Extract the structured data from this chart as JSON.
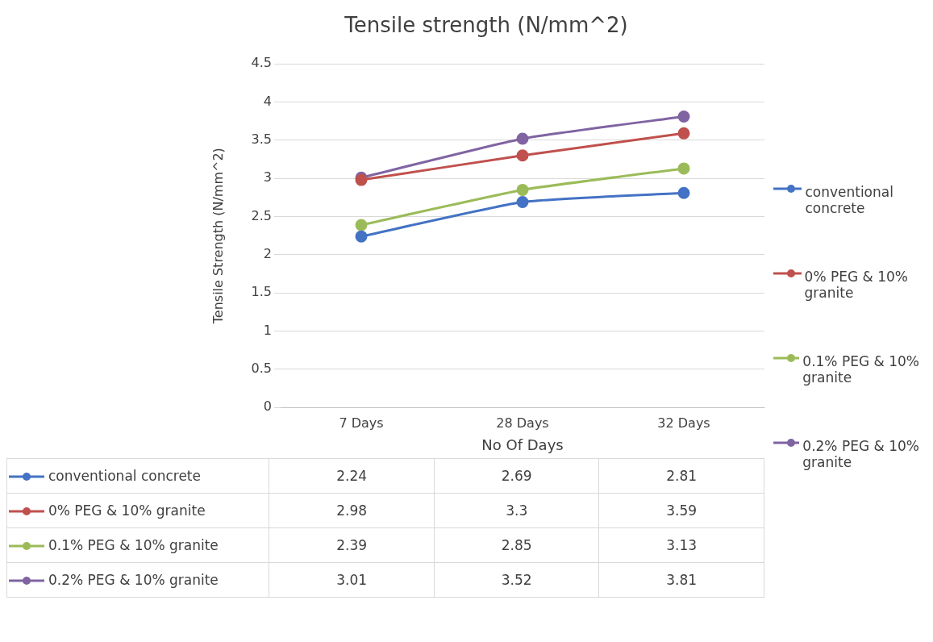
{
  "chart_data": {
    "type": "line",
    "title": "Tensile strength (N/mm^2)",
    "xlabel": "No Of Days",
    "ylabel": "Tensile Strength (N/mm^2)",
    "categories": [
      "7 Days",
      "28 Days",
      "32 Days"
    ],
    "series": [
      {
        "name": "conventional concrete",
        "color": "#4472c4",
        "values": [
          2.24,
          2.69,
          2.81
        ]
      },
      {
        "name": "0% PEG & 10% granite",
        "color": "#c0504d",
        "values": [
          2.98,
          3.3,
          3.59
        ]
      },
      {
        "name": "0.1% PEG & 10% granite",
        "color": "#9bbb59",
        "values": [
          2.39,
          2.85,
          3.13
        ]
      },
      {
        "name": "0.2% PEG & 10% granite",
        "color": "#8064a2",
        "values": [
          3.01,
          3.52,
          3.81
        ]
      }
    ],
    "ylim": [
      0,
      4.5
    ],
    "yticks": [
      0,
      0.5,
      1,
      1.5,
      2,
      2.5,
      3,
      3.5,
      4,
      4.5
    ],
    "grid": "y",
    "legend": "right",
    "marker": "circle",
    "line_style": "solid",
    "data_labels": true
  }
}
